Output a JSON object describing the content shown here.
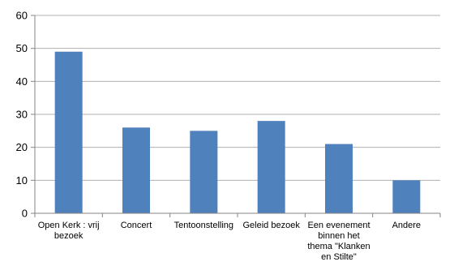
{
  "colors": {
    "bar": "#4f81bd",
    "grid": "#b0b0b0",
    "axis": "#868686"
  },
  "chart_data": {
    "type": "bar",
    "categories": [
      [
        "Open Kerk : vrij",
        "bezoek"
      ],
      [
        "Concert"
      ],
      [
        "Tentoonstelling"
      ],
      [
        "Geleid bezoek"
      ],
      [
        "Een evenement",
        "binnen het",
        "thema \"Klanken",
        "en Stilte\""
      ],
      [
        "Andere"
      ]
    ],
    "values": [
      49,
      26,
      25,
      28,
      21,
      10
    ],
    "ylim": [
      0,
      60
    ],
    "yticks": [
      0,
      10,
      20,
      30,
      40,
      50,
      60
    ],
    "grid": true,
    "legend": false,
    "title": "",
    "xlabel": "",
    "ylabel": ""
  }
}
